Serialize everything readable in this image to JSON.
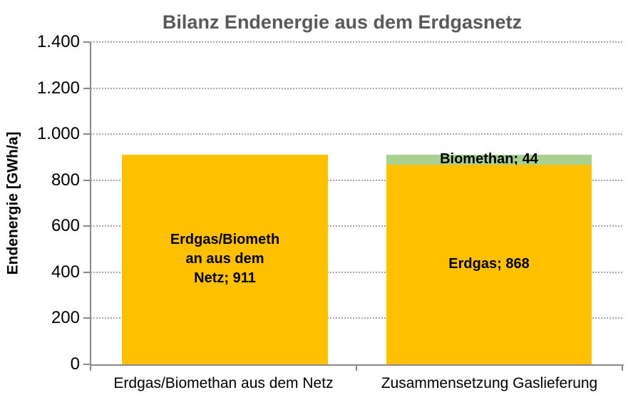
{
  "chart_data": {
    "type": "bar",
    "stacked": true,
    "title": "Bilanz Endenergie aus dem Erdgasnetz",
    "ylabel": "Endenergie [GWh/a]",
    "xlabel": "",
    "ylim": [
      0,
      1400
    ],
    "ytick_step": 200,
    "ytick_labels": [
      "0",
      "200",
      "400",
      "600",
      "800",
      "1.000",
      "1.200",
      "1.400"
    ],
    "grid": true,
    "legend": false,
    "categories": [
      "Erdgas/Biomethan aus dem Netz",
      "Zusammensetzung Gaslieferung"
    ],
    "bars": [
      {
        "category": "Erdgas/Biomethan aus dem Netz",
        "total": 911,
        "segments": [
          {
            "name": "Erdgas/Biomethan aus dem Netz",
            "value": 911,
            "color": "#FFC000",
            "label": "Erdgas/Biomethan aus dem Netz; 911",
            "label_lines": [
              "Erdgas/Biometh",
              "an aus dem",
              "Netz; 911"
            ]
          }
        ]
      },
      {
        "category": "Zusammensetzung Gaslieferung",
        "total": 912,
        "segments": [
          {
            "name": "Erdgas",
            "value": 868,
            "color": "#FFC000",
            "label": "Erdgas; 868",
            "label_lines": [
              "Erdgas; 868"
            ]
          },
          {
            "name": "Biomethan",
            "value": 44,
            "color": "#A9D08E",
            "label": "Biomethan; 44",
            "label_lines": [
              "Biomethan; 44"
            ]
          }
        ]
      }
    ],
    "colors": {
      "erdgas": "#FFC000",
      "biomethan": "#A9D08E",
      "title_text": "#595959",
      "axis": "#898989",
      "gridline": "#A6A6A6"
    }
  }
}
